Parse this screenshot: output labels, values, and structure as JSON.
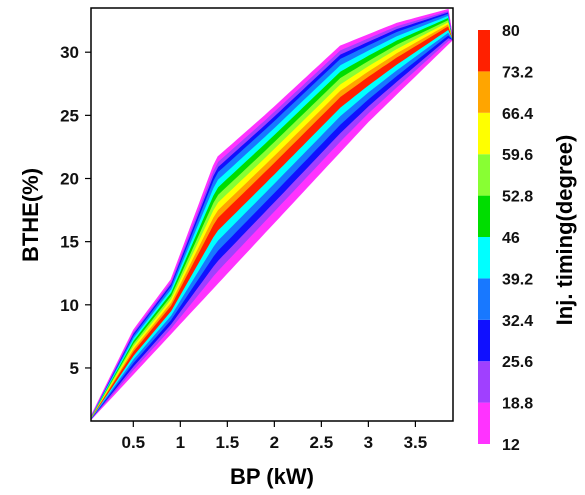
{
  "chart_data": {
    "type": "contour",
    "xlabel": "BP (kW)",
    "ylabel": "BTHE(%)",
    "colorbar_label": "Inj. timing(degree)",
    "xlim": [
      0.05,
      3.9
    ],
    "ylim": [
      0.8,
      33.5
    ],
    "x_ticks": [
      "0.5",
      "1",
      "1.5",
      "2",
      "2.5",
      "3",
      "3.5"
    ],
    "x_tick_values": [
      0.5,
      1,
      1.5,
      2,
      2.5,
      3,
      3.5
    ],
    "y_ticks": [
      "5",
      "10",
      "15",
      "20",
      "25",
      "30"
    ],
    "y_tick_values": [
      5,
      10,
      15,
      20,
      25,
      30
    ],
    "colorbar_levels": [
      "12",
      "18.8",
      "25.6",
      "32.4",
      "39.2",
      "46",
      "52.8",
      "59.6",
      "66.4",
      "73.2",
      "80"
    ],
    "colorbar_level_values": [
      12,
      18.8,
      25.6,
      32.4,
      39.2,
      46,
      52.8,
      59.6,
      66.4,
      73.2,
      80
    ],
    "colorbar_colors": [
      "#ff33ff",
      "#a040ff",
      "#1010ff",
      "#1878ff",
      "#00ffff",
      "#00dd00",
      "#88ff33",
      "#ffff00",
      "#ffa500",
      "#ff2000"
    ],
    "data_region": {
      "lower_edge": [
        [
          0.05,
          0.9
        ],
        [
          1.0,
          8.5
        ],
        [
          2.0,
          16.5
        ],
        [
          3.0,
          24.5
        ],
        [
          3.9,
          31.0
        ]
      ],
      "upper_edge": [
        [
          0.05,
          1.2
        ],
        [
          0.5,
          8.0
        ],
        [
          0.9,
          12.0
        ],
        [
          1.38,
          21.6
        ],
        [
          1.9,
          25.0
        ],
        [
          2.7,
          30.5
        ],
        [
          3.3,
          32.3
        ],
        [
          3.85,
          33.4
        ],
        [
          3.9,
          31.0
        ]
      ]
    },
    "grid": false,
    "legend": "right colorbar"
  }
}
